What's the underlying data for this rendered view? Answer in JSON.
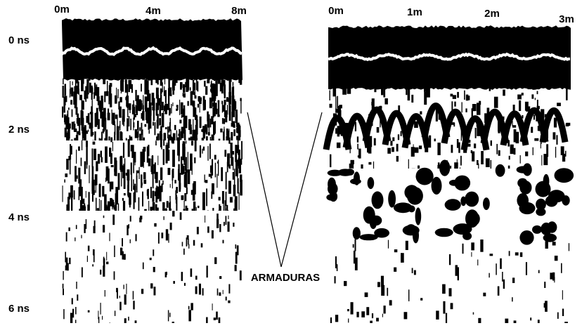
{
  "left_panel": {
    "x_labels": [
      "0m",
      "4m",
      "8m"
    ]
  },
  "right_panel": {
    "x_labels": [
      "0m",
      "1m",
      "2m",
      "3m"
    ]
  },
  "y_labels": [
    "0 ns",
    "2 ns",
    "4 ns",
    "6 ns"
  ],
  "annotation": "ARMADURAS"
}
